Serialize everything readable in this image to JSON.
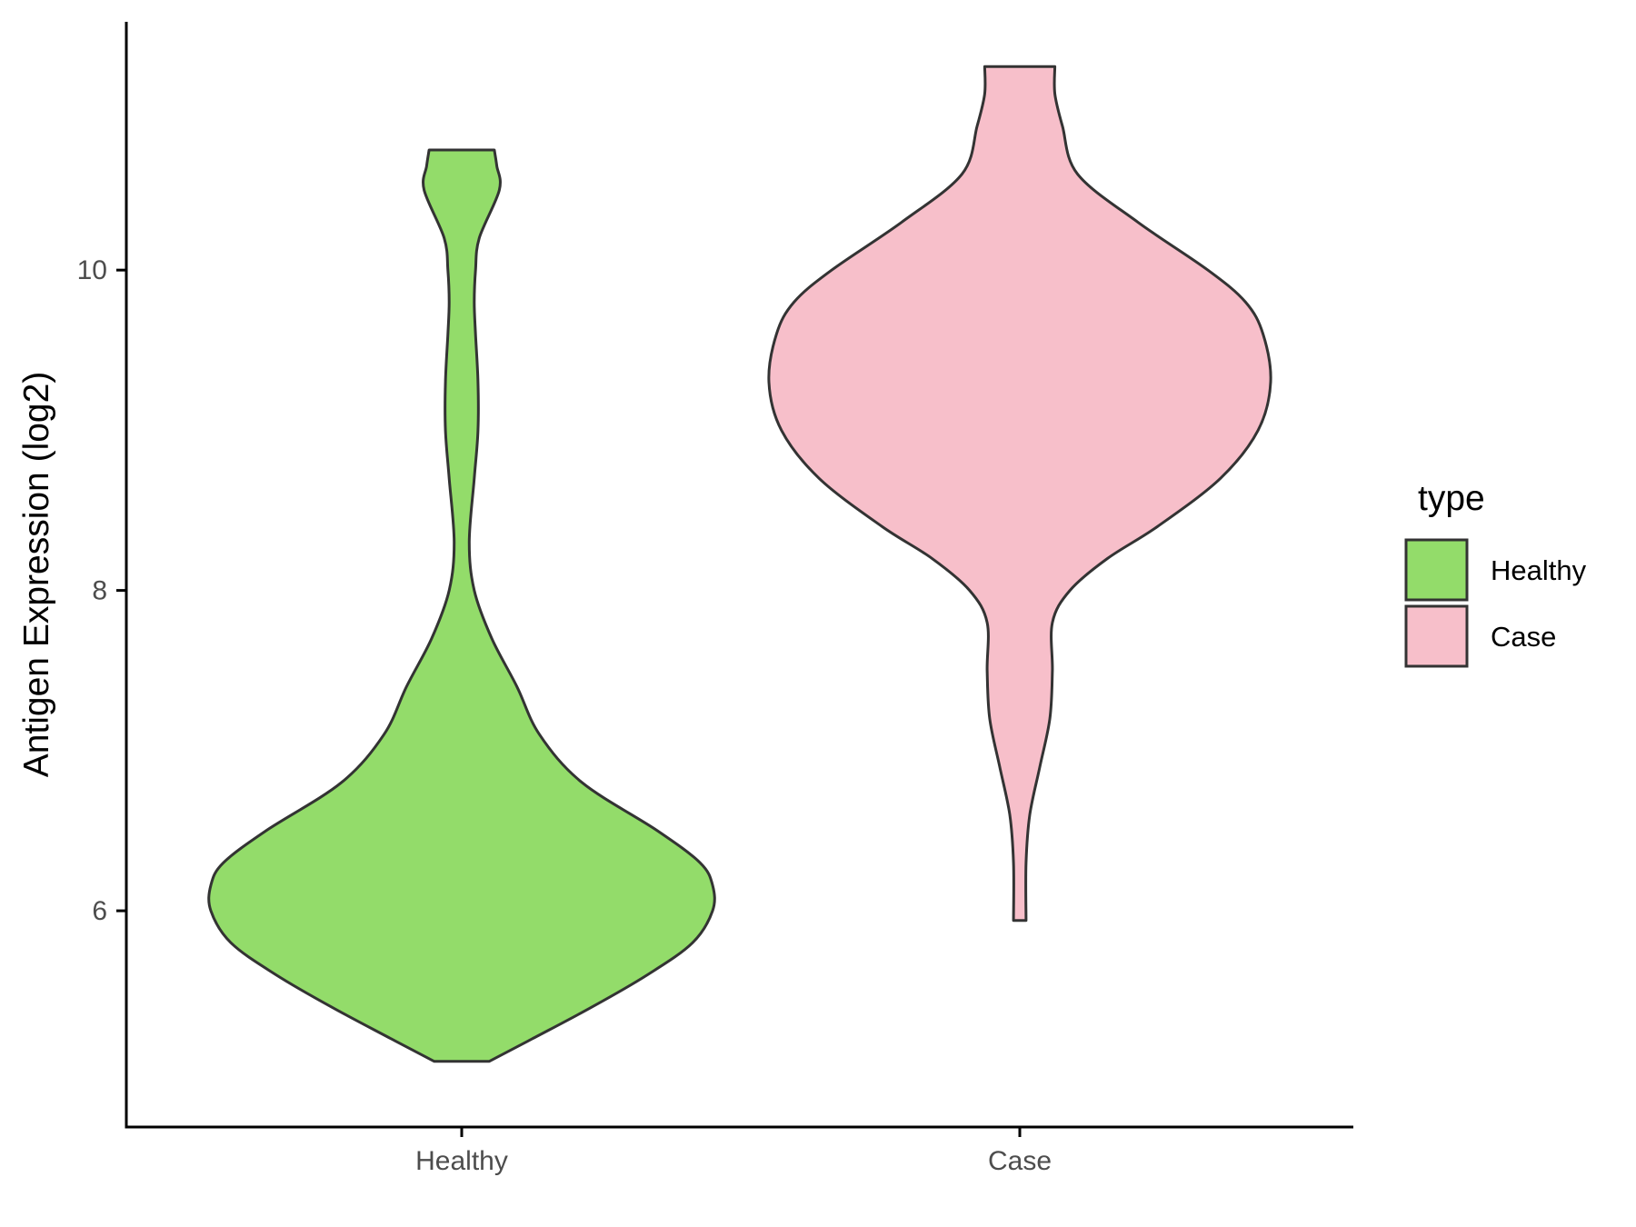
{
  "chart_data": {
    "type": "violin",
    "title": "",
    "xlabel": "",
    "ylabel": "Antigen Expression (log2)",
    "ylim": [
      4.65,
      11.55
    ],
    "yticks": [
      6,
      8,
      10
    ],
    "categories": [
      "Healthy",
      "Case"
    ],
    "legend": {
      "title": "type",
      "position": "right",
      "entries": [
        "Healthy",
        "Case"
      ]
    },
    "series": [
      {
        "name": "Healthy",
        "color": "#93dc6a",
        "min": 5.06,
        "max": 10.75,
        "density_profile": [
          [
            5.06,
            0.11
          ],
          [
            5.2,
            0.28
          ],
          [
            5.4,
            0.52
          ],
          [
            5.6,
            0.74
          ],
          [
            5.8,
            0.92
          ],
          [
            6.0,
            1.0
          ],
          [
            6.16,
            1.0
          ],
          [
            6.3,
            0.95
          ],
          [
            6.5,
            0.78
          ],
          [
            6.8,
            0.48
          ],
          [
            7.1,
            0.31
          ],
          [
            7.4,
            0.22
          ],
          [
            7.7,
            0.12
          ],
          [
            8.0,
            0.05
          ],
          [
            8.3,
            0.03
          ],
          [
            8.7,
            0.05
          ],
          [
            9.0,
            0.065
          ],
          [
            9.3,
            0.065
          ],
          [
            9.6,
            0.055
          ],
          [
            9.8,
            0.05
          ],
          [
            10.0,
            0.055
          ],
          [
            10.2,
            0.07
          ],
          [
            10.5,
            0.15
          ],
          [
            10.65,
            0.14
          ],
          [
            10.75,
            0.13
          ]
        ]
      },
      {
        "name": "Case",
        "color": "#f7bfca",
        "min": 5.94,
        "max": 11.27,
        "density_profile": [
          [
            5.94,
            0.025
          ],
          [
            6.3,
            0.025
          ],
          [
            6.6,
            0.04
          ],
          [
            6.9,
            0.08
          ],
          [
            7.2,
            0.12
          ],
          [
            7.5,
            0.13
          ],
          [
            7.8,
            0.13
          ],
          [
            8.0,
            0.2
          ],
          [
            8.2,
            0.35
          ],
          [
            8.4,
            0.55
          ],
          [
            8.7,
            0.8
          ],
          [
            9.0,
            0.95
          ],
          [
            9.3,
            1.0
          ],
          [
            9.6,
            0.97
          ],
          [
            9.8,
            0.9
          ],
          [
            10.0,
            0.75
          ],
          [
            10.3,
            0.47
          ],
          [
            10.6,
            0.23
          ],
          [
            10.9,
            0.17
          ],
          [
            11.1,
            0.14
          ],
          [
            11.27,
            0.14
          ]
        ]
      }
    ]
  }
}
